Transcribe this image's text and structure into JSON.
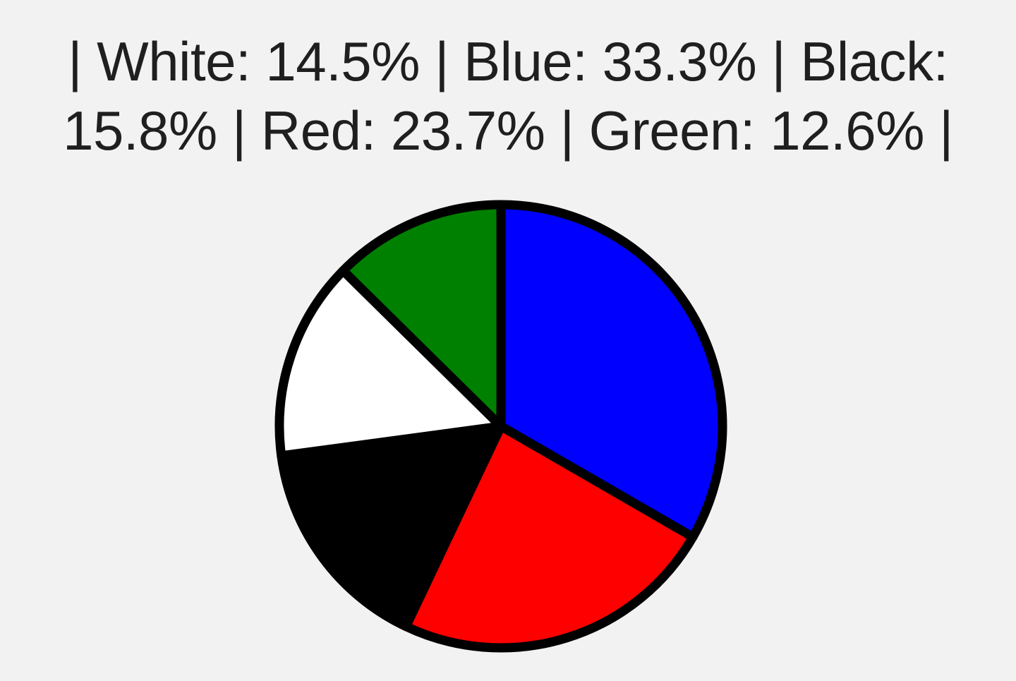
{
  "chart_data": {
    "type": "pie",
    "title": "",
    "legend_placement": "top",
    "start_angle": "12 o'clock",
    "direction": "clockwise",
    "slices": [
      {
        "label": "Blue",
        "percent_text": "33.3%",
        "value": 33.3,
        "color": "#0000ff"
      },
      {
        "label": "Red",
        "percent_text": "23.7%",
        "value": 23.7,
        "color": "#ff0000"
      },
      {
        "label": "Black",
        "percent_text": "15.8%",
        "value": 15.8,
        "color": "#000000"
      },
      {
        "label": "White",
        "percent_text": "14.5%",
        "value": 14.5,
        "color": "#ffffff"
      },
      {
        "label": "Green",
        "percent_text": "12.6%",
        "value": 12.6,
        "color": "#008000"
      }
    ],
    "legend_order": [
      "White",
      "Blue",
      "Black",
      "Red",
      "Green"
    ],
    "outline_color": "#000000"
  }
}
